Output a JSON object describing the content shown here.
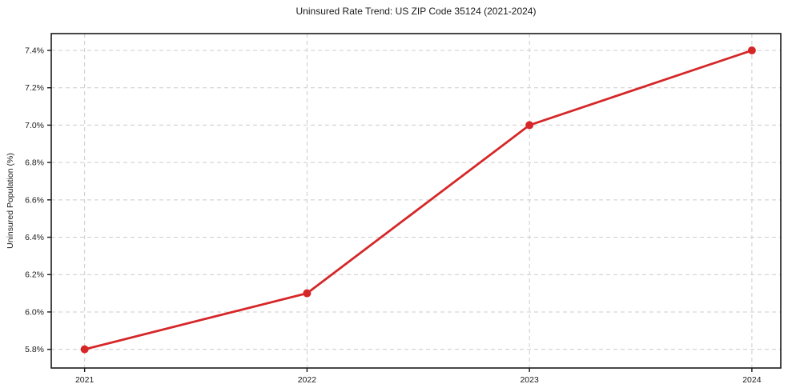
{
  "chart_data": {
    "type": "line",
    "title": "Uninsured Rate Trend: US ZIP Code 35124 (2021-2024)",
    "xlabel": "",
    "ylabel": "Uninsured Population (%)",
    "x": [
      2021,
      2022,
      2023,
      2024
    ],
    "values": [
      5.8,
      6.1,
      7.0,
      7.4
    ],
    "xtick_labels": [
      "2021",
      "2022",
      "2023",
      "2024"
    ],
    "yticks": [
      5.8,
      6.0,
      6.2,
      6.4,
      6.6,
      6.8,
      7.0,
      7.2,
      7.4
    ],
    "ytick_labels": [
      "5.8%",
      "6.0%",
      "6.2%",
      "6.4%",
      "6.6%",
      "6.8%",
      "7.0%",
      "7.2%",
      "7.4%"
    ],
    "xlim": [
      2020.85,
      2024.13
    ],
    "ylim": [
      5.7,
      7.49
    ],
    "grid": true,
    "legend": false,
    "marker": "circle",
    "colors": {
      "line": "#d62728",
      "marker": "#d62728",
      "grid": "#cccccc",
      "frame": "#1a1a1a",
      "text": "#1a1a1a",
      "background": "#ffffff"
    }
  }
}
